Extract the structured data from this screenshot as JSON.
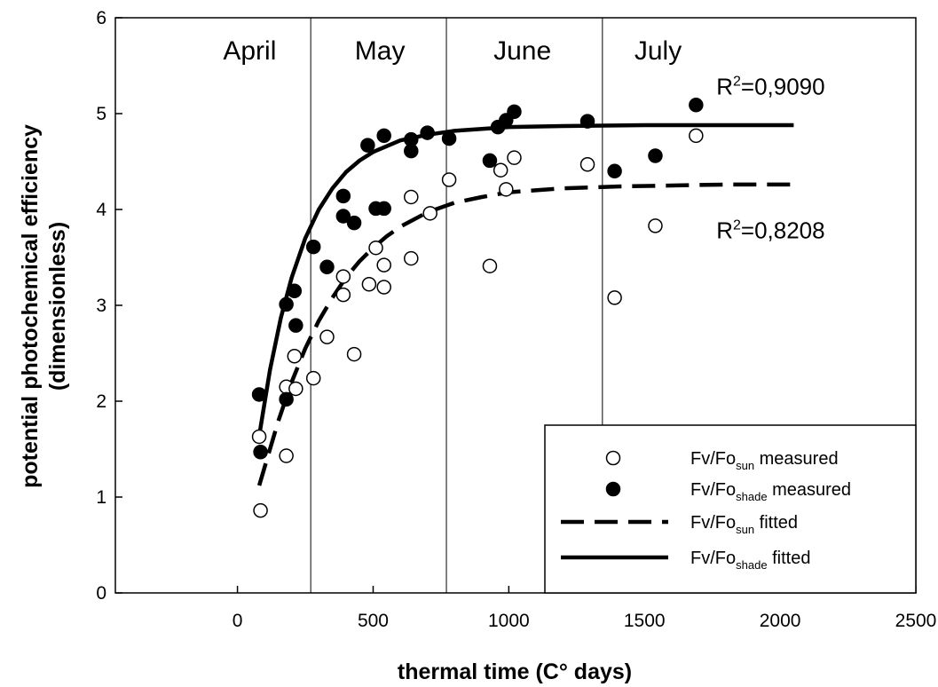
{
  "chart_data": {
    "type": "scatter",
    "xlabel": "thermal time (C° days)",
    "ylabel_line1": "potential photochemical efficiency",
    "ylabel_line2": "(dimensionless)",
    "xlim": [
      -450,
      2500
    ],
    "ylim": [
      0,
      6
    ],
    "xticks": [
      0,
      500,
      1000,
      1500,
      2000,
      2500
    ],
    "yticks": [
      0,
      1,
      2,
      3,
      4,
      5,
      6
    ],
    "grid": false,
    "legend_position": "bottom-right",
    "month_separators": [
      270,
      770,
      1345
    ],
    "months": [
      {
        "label": "April",
        "x": 45
      },
      {
        "label": "May",
        "x": 525
      },
      {
        "label": "June",
        "x": 1050
      },
      {
        "label": "July",
        "x": 1550
      }
    ],
    "annotations": [
      {
        "base": "R",
        "sup": "2",
        "rest": "=0,9090",
        "x": 1965,
        "y": 5.2
      },
      {
        "base": "R",
        "sup": "2",
        "rest": "=0,8208",
        "x": 1965,
        "y": 3.7
      }
    ],
    "series": [
      {
        "name_base": "Fv/Fo",
        "name_sub": "sun",
        "name_rest": " measured",
        "kind": "scatter",
        "marker": "open-circle",
        "points": [
          [
            80,
            1.63
          ],
          [
            85,
            0.86
          ],
          [
            180,
            2.15
          ],
          [
            180,
            1.43
          ],
          [
            215,
            2.13
          ],
          [
            210,
            2.47
          ],
          [
            280,
            2.24
          ],
          [
            330,
            2.67
          ],
          [
            390,
            3.3
          ],
          [
            390,
            3.11
          ],
          [
            430,
            2.49
          ],
          [
            485,
            3.22
          ],
          [
            510,
            3.6
          ],
          [
            540,
            3.19
          ],
          [
            540,
            3.42
          ],
          [
            640,
            4.13
          ],
          [
            640,
            3.49
          ],
          [
            710,
            3.96
          ],
          [
            780,
            4.31
          ],
          [
            930,
            3.41
          ],
          [
            970,
            4.41
          ],
          [
            990,
            4.21
          ],
          [
            1020,
            4.54
          ],
          [
            1290,
            4.47
          ],
          [
            1390,
            3.08
          ],
          [
            1540,
            3.83
          ],
          [
            1690,
            4.77
          ]
        ]
      },
      {
        "name_base": "Fv/Fo",
        "name_sub": "shade",
        "name_rest": " measured",
        "kind": "scatter",
        "marker": "filled-circle",
        "points": [
          [
            80,
            2.07
          ],
          [
            85,
            1.47
          ],
          [
            180,
            3.01
          ],
          [
            180,
            2.02
          ],
          [
            210,
            3.15
          ],
          [
            215,
            2.79
          ],
          [
            280,
            3.61
          ],
          [
            330,
            3.4
          ],
          [
            390,
            4.14
          ],
          [
            390,
            3.93
          ],
          [
            430,
            3.86
          ],
          [
            480,
            4.67
          ],
          [
            510,
            4.01
          ],
          [
            540,
            4.01
          ],
          [
            540,
            4.77
          ],
          [
            640,
            4.73
          ],
          [
            640,
            4.61
          ],
          [
            700,
            4.8
          ],
          [
            780,
            4.74
          ],
          [
            930,
            4.51
          ],
          [
            960,
            4.86
          ],
          [
            990,
            4.93
          ],
          [
            1020,
            5.02
          ],
          [
            1290,
            4.92
          ],
          [
            1390,
            4.4
          ],
          [
            1540,
            4.56
          ],
          [
            1690,
            5.09
          ]
        ]
      },
      {
        "name_base": "Fv/Fo",
        "name_sub": "sun",
        "name_rest": " fitted",
        "kind": "line",
        "style": "dashed",
        "points": [
          [
            80,
            1.12
          ],
          [
            150,
            1.79
          ],
          [
            200,
            2.2
          ],
          [
            250,
            2.55
          ],
          [
            300,
            2.84
          ],
          [
            350,
            3.08
          ],
          [
            400,
            3.29
          ],
          [
            450,
            3.46
          ],
          [
            500,
            3.6
          ],
          [
            550,
            3.72
          ],
          [
            600,
            3.82
          ],
          [
            700,
            3.97
          ],
          [
            800,
            4.07
          ],
          [
            900,
            4.13
          ],
          [
            1000,
            4.18
          ],
          [
            1200,
            4.22
          ],
          [
            1400,
            4.24
          ],
          [
            1600,
            4.25
          ],
          [
            1800,
            4.26
          ],
          [
            2050,
            4.26
          ]
        ]
      },
      {
        "name_base": "Fv/Fo",
        "name_sub": "shade",
        "name_rest": " fitted",
        "kind": "line",
        "style": "solid",
        "points": [
          [
            80,
            1.64
          ],
          [
            120,
            2.33
          ],
          [
            160,
            2.87
          ],
          [
            200,
            3.29
          ],
          [
            250,
            3.7
          ],
          [
            300,
            4.0
          ],
          [
            350,
            4.22
          ],
          [
            400,
            4.39
          ],
          [
            450,
            4.51
          ],
          [
            500,
            4.6
          ],
          [
            600,
            4.72
          ],
          [
            700,
            4.78
          ],
          [
            800,
            4.82
          ],
          [
            1000,
            4.86
          ],
          [
            1200,
            4.87
          ],
          [
            1500,
            4.88
          ],
          [
            2050,
            4.88
          ]
        ]
      }
    ]
  }
}
